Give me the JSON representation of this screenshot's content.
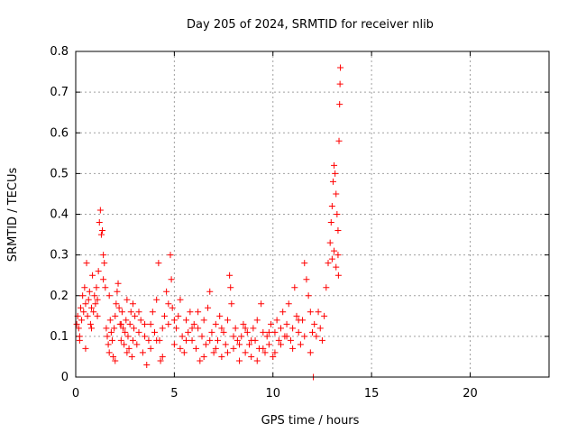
{
  "chart_data": {
    "type": "scatter",
    "title": "Day 205 of 2024, SRMTID for receiver nlib",
    "xlabel": "GPS time / hours",
    "ylabel": "SRMTID / TECUs",
    "xlim": [
      0,
      24
    ],
    "ylim": [
      0,
      0.8
    ],
    "xticks": [
      0,
      5,
      10,
      15,
      20
    ],
    "yticks": [
      0,
      0.1,
      0.2,
      0.3,
      0.4,
      0.5,
      0.6,
      0.7,
      0.8
    ],
    "grid": true,
    "marker": "+",
    "color": "#ff0000",
    "series": [
      {
        "name": "nlib",
        "points": [
          [
            0.05,
            0.13
          ],
          [
            0.1,
            0.15
          ],
          [
            0.15,
            0.12
          ],
          [
            0.2,
            0.1
          ],
          [
            0.25,
            0.17
          ],
          [
            0.3,
            0.14
          ],
          [
            0.35,
            0.2
          ],
          [
            0.4,
            0.16
          ],
          [
            0.45,
            0.22
          ],
          [
            0.5,
            0.18
          ],
          [
            0.55,
            0.28
          ],
          [
            0.6,
            0.15
          ],
          [
            0.65,
            0.19
          ],
          [
            0.7,
            0.21
          ],
          [
            0.75,
            0.13
          ],
          [
            0.8,
            0.17
          ],
          [
            0.85,
            0.25
          ],
          [
            0.9,
            0.16
          ],
          [
            0.95,
            0.2
          ],
          [
            1.0,
            0.18
          ],
          [
            1.05,
            0.22
          ],
          [
            1.1,
            0.19
          ],
          [
            1.15,
            0.26
          ],
          [
            1.2,
            0.38
          ],
          [
            1.25,
            0.41
          ],
          [
            1.3,
            0.35
          ],
          [
            1.35,
            0.36
          ],
          [
            1.4,
            0.3
          ],
          [
            1.45,
            0.28
          ],
          [
            1.5,
            0.22
          ],
          [
            1.55,
            0.12
          ],
          [
            1.6,
            0.1
          ],
          [
            1.65,
            0.08
          ],
          [
            1.7,
            0.06
          ],
          [
            1.75,
            0.14
          ],
          [
            1.8,
            0.11
          ],
          [
            1.85,
            0.09
          ],
          [
            1.9,
            0.05
          ],
          [
            1.95,
            0.12
          ],
          [
            2.0,
            0.15
          ],
          [
            2.05,
            0.18
          ],
          [
            2.1,
            0.21
          ],
          [
            2.15,
            0.23
          ],
          [
            2.2,
            0.17
          ],
          [
            2.25,
            0.13
          ],
          [
            2.3,
            0.09
          ],
          [
            2.35,
            0.16
          ],
          [
            2.4,
            0.12
          ],
          [
            2.45,
            0.08
          ],
          [
            2.5,
            0.11
          ],
          [
            2.55,
            0.14
          ],
          [
            2.6,
            0.19
          ],
          [
            2.65,
            0.1
          ],
          [
            2.7,
            0.07
          ],
          [
            2.75,
            0.13
          ],
          [
            2.8,
            0.16
          ],
          [
            2.85,
            0.05
          ],
          [
            2.9,
            0.09
          ],
          [
            2.95,
            0.12
          ],
          [
            3.0,
            0.15
          ],
          [
            3.1,
            0.08
          ],
          [
            3.2,
            0.11
          ],
          [
            3.3,
            0.14
          ],
          [
            3.4,
            0.06
          ],
          [
            3.5,
            0.1
          ],
          [
            3.6,
            0.03
          ],
          [
            3.7,
            0.09
          ],
          [
            3.8,
            0.13
          ],
          [
            3.9,
            0.16
          ],
          [
            4.0,
            0.11
          ],
          [
            4.1,
            0.19
          ],
          [
            4.2,
            0.28
          ],
          [
            4.25,
            0.09
          ],
          [
            4.3,
            0.04
          ],
          [
            4.4,
            0.12
          ],
          [
            4.5,
            0.15
          ],
          [
            4.6,
            0.21
          ],
          [
            4.7,
            0.13
          ],
          [
            4.8,
            0.3
          ],
          [
            4.85,
            0.24
          ],
          [
            4.9,
            0.17
          ],
          [
            5.0,
            0.08
          ],
          [
            5.1,
            0.12
          ],
          [
            5.2,
            0.15
          ],
          [
            5.3,
            0.19
          ],
          [
            5.4,
            0.1
          ],
          [
            5.5,
            0.06
          ],
          [
            5.6,
            0.14
          ],
          [
            5.7,
            0.11
          ],
          [
            5.8,
            0.16
          ],
          [
            5.9,
            0.09
          ],
          [
            6.0,
            0.13
          ],
          [
            6.1,
            0.07
          ],
          [
            6.2,
            0.12
          ],
          [
            6.3,
            0.04
          ],
          [
            6.4,
            0.1
          ],
          [
            6.5,
            0.14
          ],
          [
            6.6,
            0.08
          ],
          [
            6.7,
            0.17
          ],
          [
            6.8,
            0.21
          ],
          [
            6.9,
            0.11
          ],
          [
            7.0,
            0.06
          ],
          [
            7.1,
            0.13
          ],
          [
            7.2,
            0.09
          ],
          [
            7.3,
            0.15
          ],
          [
            7.4,
            0.05
          ],
          [
            7.5,
            0.11
          ],
          [
            7.6,
            0.08
          ],
          [
            7.7,
            0.14
          ],
          [
            7.8,
            0.25
          ],
          [
            7.85,
            0.22
          ],
          [
            7.9,
            0.18
          ],
          [
            8.0,
            0.07
          ],
          [
            8.1,
            0.12
          ],
          [
            8.2,
            0.09
          ],
          [
            8.3,
            0.04
          ],
          [
            8.4,
            0.1
          ],
          [
            8.5,
            0.13
          ],
          [
            8.6,
            0.06
          ],
          [
            8.7,
            0.11
          ],
          [
            8.8,
            0.08
          ],
          [
            8.9,
            0.05
          ],
          [
            9.0,
            0.12
          ],
          [
            9.1,
            0.09
          ],
          [
            9.2,
            0.14
          ],
          [
            9.3,
            0.07
          ],
          [
            9.4,
            0.18
          ],
          [
            9.5,
            0.11
          ],
          [
            9.6,
            0.06
          ],
          [
            9.7,
            0.1
          ],
          [
            9.8,
            0.08
          ],
          [
            9.9,
            0.13
          ],
          [
            10.0,
            0.05
          ],
          [
            10.1,
            0.11
          ],
          [
            10.2,
            0.14
          ],
          [
            10.3,
            0.09
          ],
          [
            10.4,
            0.12
          ],
          [
            10.5,
            0.16
          ],
          [
            10.6,
            0.1
          ],
          [
            10.7,
            0.13
          ],
          [
            10.8,
            0.18
          ],
          [
            10.9,
            0.09
          ],
          [
            11.0,
            0.12
          ],
          [
            11.1,
            0.22
          ],
          [
            11.2,
            0.15
          ],
          [
            11.3,
            0.11
          ],
          [
            11.4,
            0.08
          ],
          [
            11.5,
            0.14
          ],
          [
            11.6,
            0.28
          ],
          [
            11.7,
            0.24
          ],
          [
            11.8,
            0.2
          ],
          [
            11.9,
            0.16
          ],
          [
            12.0,
            0.11
          ],
          [
            12.05,
            0.0
          ],
          [
            12.1,
            0.13
          ],
          [
            12.2,
            0.1
          ],
          [
            12.3,
            0.16
          ],
          [
            12.4,
            0.12
          ],
          [
            12.5,
            0.09
          ],
          [
            12.6,
            0.15
          ],
          [
            12.7,
            0.22
          ],
          [
            12.8,
            0.28
          ],
          [
            12.9,
            0.33
          ],
          [
            12.95,
            0.38
          ],
          [
            13.0,
            0.42
          ],
          [
            13.05,
            0.48
          ],
          [
            13.1,
            0.52
          ],
          [
            13.15,
            0.5
          ],
          [
            13.2,
            0.45
          ],
          [
            13.25,
            0.4
          ],
          [
            13.3,
            0.36
          ],
          [
            13.32,
            0.25
          ],
          [
            13.35,
            0.58
          ],
          [
            13.38,
            0.67
          ],
          [
            13.4,
            0.72
          ],
          [
            13.42,
            0.76
          ],
          [
            13.3,
            0.3
          ],
          [
            13.2,
            0.27
          ],
          [
            13.1,
            0.31
          ],
          [
            13.0,
            0.29
          ],
          [
            0.2,
            0.09
          ],
          [
            0.5,
            0.07
          ],
          [
            0.8,
            0.12
          ],
          [
            1.1,
            0.15
          ],
          [
            1.4,
            0.24
          ],
          [
            1.7,
            0.2
          ],
          [
            2.0,
            0.04
          ],
          [
            2.3,
            0.13
          ],
          [
            2.6,
            0.06
          ],
          [
            2.9,
            0.18
          ],
          [
            3.2,
            0.16
          ],
          [
            3.5,
            0.13
          ],
          [
            3.8,
            0.07
          ],
          [
            4.1,
            0.09
          ],
          [
            4.4,
            0.05
          ],
          [
            4.7,
            0.18
          ],
          [
            5.0,
            0.14
          ],
          [
            5.3,
            0.07
          ],
          [
            5.6,
            0.09
          ],
          [
            5.9,
            0.12
          ],
          [
            6.2,
            0.16
          ],
          [
            6.5,
            0.05
          ],
          [
            6.8,
            0.09
          ],
          [
            7.1,
            0.07
          ],
          [
            7.4,
            0.12
          ],
          [
            7.7,
            0.06
          ],
          [
            8.0,
            0.1
          ],
          [
            8.3,
            0.08
          ],
          [
            8.6,
            0.12
          ],
          [
            8.9,
            0.09
          ],
          [
            9.2,
            0.04
          ],
          [
            9.5,
            0.07
          ],
          [
            9.8,
            0.11
          ],
          [
            10.1,
            0.06
          ],
          [
            10.4,
            0.08
          ],
          [
            10.7,
            0.1
          ],
          [
            11.0,
            0.07
          ],
          [
            11.3,
            0.14
          ],
          [
            11.6,
            0.1
          ],
          [
            11.9,
            0.06
          ]
        ]
      }
    ]
  }
}
